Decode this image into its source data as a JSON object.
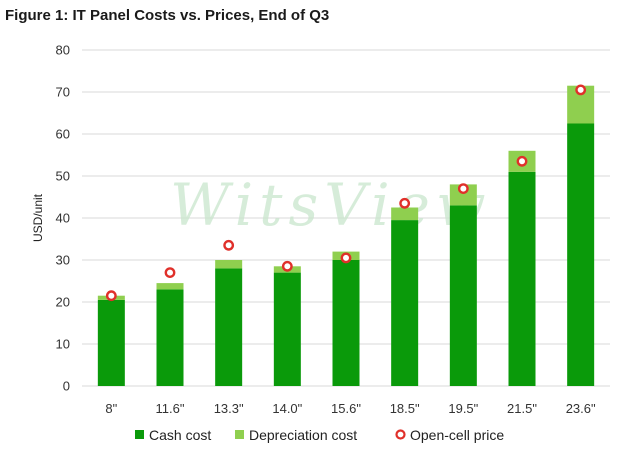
{
  "chart_data": {
    "type": "bar",
    "title": "Figure 1: IT Panel Costs vs. Prices, End of Q3",
    "ylabel": "USD/unit",
    "xlabel": "",
    "ylim": [
      0,
      80
    ],
    "yticks": [
      0,
      10,
      20,
      30,
      40,
      50,
      60,
      70,
      80
    ],
    "categories": [
      "8\"",
      "11.6\"",
      "13.3\"",
      "14.0\"",
      "15.6\"",
      "18.5\"",
      "19.5\"",
      "21.5\"",
      "23.6\""
    ],
    "stacked": true,
    "series": [
      {
        "name": "Cash cost",
        "type": "bar",
        "color": "#0a9a0a",
        "values": [
          20.5,
          23,
          28,
          27,
          30,
          39.5,
          43,
          51,
          62.5
        ]
      },
      {
        "name": "Depreciation cost",
        "type": "bar",
        "color": "#8fcf4f",
        "values": [
          1,
          1.5,
          2,
          1.5,
          2,
          3,
          5,
          5,
          9
        ]
      },
      {
        "name": "Open-cell price",
        "type": "marker",
        "color": "#e0302a",
        "values": [
          21.5,
          27,
          33.5,
          28.5,
          30.5,
          43.5,
          47,
          53.5,
          70.5
        ]
      }
    ],
    "grid": "horizontal",
    "legend_position": "bottom",
    "watermark": "WitsView"
  }
}
